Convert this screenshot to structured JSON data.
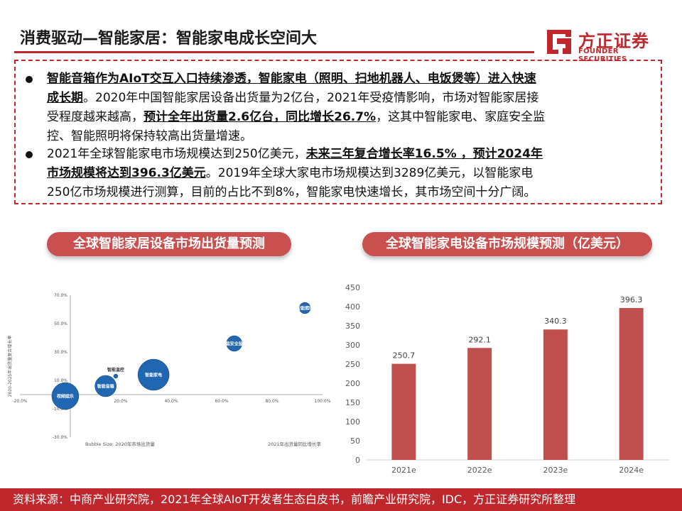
{
  "header": {
    "title": "消费驱动—智能家居：智能家电成长空间大",
    "logo_cn": "方正证券",
    "logo_en": "FOUNDER SECURITIES"
  },
  "summary": {
    "bullet1_lines": [
      [
        {
          "t": "智能音箱作为AIoT交互入口持续渗透，智能家电（照明、扫地机器人、电饭煲等）进入快速",
          "b": true
        }
      ],
      [
        {
          "t": "成长期",
          "b": true
        },
        {
          "t": "。2020年中国智能家居设备出货量为2亿台，2021年受疫情影响，市场对智能家居接",
          "b": false
        }
      ],
      [
        {
          "t": "受程度越来越高，",
          "b": false
        },
        {
          "t": "预计全年出货量2.6亿台，同比增长26.7%",
          "b": true
        },
        {
          "t": "，这其中智能家电、家庭安全监",
          "b": false
        }
      ],
      [
        {
          "t": "控、智能照明将保持较高出货量增速。",
          "b": false
        }
      ]
    ],
    "bullet2_lines": [
      [
        {
          "t": "2021年全球智能家电市场规模达到250亿美元，",
          "b": false
        },
        {
          "t": "未来三年复合增长率16.5% ，预计2024年",
          "b": true
        }
      ],
      [
        {
          "t": "市场规模将达到396.3亿美元",
          "b": true
        },
        {
          "t": "。2019年全球大家电市场规模达到3289亿美元，以智能家电",
          "b": false
        }
      ],
      [
        {
          "t": "250亿市场规模进行测算，目前的占比不到8%，智能家电快速增长，其市场空间十分广阔。",
          "b": false
        }
      ]
    ]
  },
  "left_chart_title": "全球智能家居设备市场出货量预测",
  "right_chart_title": "全球智能家电设备市场规模预测（亿美元）",
  "footer": "资料来源：中商产业研究院，2021年全球AIoT开发者生态白皮书，前瞻产业研究院，IDC，方正证券研究所整理",
  "chart_data": [
    {
      "type": "scatter",
      "subtype": "bubble",
      "title": "全球智能家居设备市场出货量预测",
      "xlabel": "2021年出货量同比增长率",
      "ylabel": "2020-2025年出货量复合增长率",
      "size_label": "Bubble Size: 2020年市场出货量",
      "xlim": [
        -0.2,
        1.0
      ],
      "ylim": [
        -0.3,
        0.7
      ],
      "x_ticks": [
        "-20.0%",
        "0.0%",
        "20.0%",
        "40.0%",
        "60.0%",
        "80.0%",
        "100.0%"
      ],
      "y_ticks": [
        "70.0%",
        "50.0%",
        "30.0%",
        "10.0%",
        "-10.0%",
        "-30.0%"
      ],
      "points": [
        {
          "label": "视频娱乐",
          "x": -0.02,
          "y": -0.01,
          "size": 19
        },
        {
          "label": "智能音箱",
          "x": 0.14,
          "y": 0.06,
          "size": 15
        },
        {
          "label": "智能温控",
          "x": 0.18,
          "y": 0.13,
          "size": 3
        },
        {
          "label": "智能家电",
          "x": 0.33,
          "y": 0.14,
          "size": 22
        },
        {
          "label": "家庭安全监控",
          "x": 0.65,
          "y": 0.36,
          "size": 11
        },
        {
          "label": "智能照明",
          "x": 0.93,
          "y": 0.61,
          "size": 8
        }
      ]
    },
    {
      "type": "bar",
      "title": "全球智能家电设备市场规模预测（亿美元）",
      "categories": [
        "2021e",
        "2022e",
        "2023e",
        "2024e"
      ],
      "values": [
        250.7,
        292.1,
        340.3,
        396.3
      ],
      "value_labels": [
        "250.7",
        "292.1",
        "340.3",
        "396.3"
      ],
      "ylim": [
        0,
        450
      ],
      "y_ticks": [
        "0",
        "50",
        "100",
        "150",
        "200",
        "250",
        "300",
        "350",
        "400",
        "450"
      ],
      "color": "#c0504d"
    }
  ],
  "colors": {
    "brand": "#c0272d",
    "pill": "#c9504f",
    "bar": "#c0504d",
    "bubble": "#1f5fa8"
  }
}
